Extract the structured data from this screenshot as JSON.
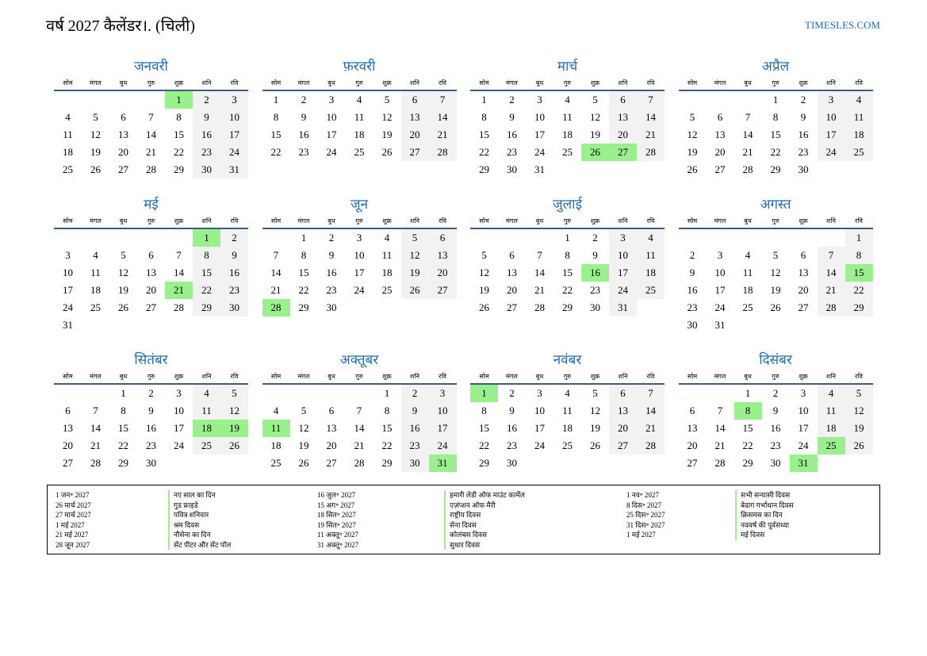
{
  "title": "वर्ष 2027 कैलेंडर।. (चिली)",
  "site": "TIMESLES.COM",
  "weekdays": [
    "सोम",
    "मंगल",
    "बुध",
    "गुरु",
    "शुक्र",
    "शनि",
    "रवि"
  ],
  "months": [
    {
      "name": "जनवरी",
      "offset": 4,
      "days": 31,
      "holidays": [
        1
      ]
    },
    {
      "name": "फ़रवरी",
      "offset": 0,
      "days": 28,
      "holidays": []
    },
    {
      "name": "मार्च",
      "offset": 0,
      "days": 31,
      "holidays": [
        26,
        27
      ]
    },
    {
      "name": "अप्रैल",
      "offset": 3,
      "days": 30,
      "holidays": []
    },
    {
      "name": "मई",
      "offset": 5,
      "days": 31,
      "holidays": [
        1,
        21
      ]
    },
    {
      "name": "जून",
      "offset": 1,
      "days": 30,
      "holidays": [
        28
      ]
    },
    {
      "name": "जुलाई",
      "offset": 3,
      "days": 31,
      "holidays": [
        16
      ]
    },
    {
      "name": "अगस्त",
      "offset": 6,
      "days": 31,
      "holidays": [
        15
      ]
    },
    {
      "name": "सितंबर",
      "offset": 2,
      "days": 30,
      "holidays": [
        18,
        19
      ]
    },
    {
      "name": "अक्तूबर",
      "offset": 4,
      "days": 31,
      "holidays": [
        11,
        31
      ]
    },
    {
      "name": "नवंबर",
      "offset": 0,
      "days": 30,
      "holidays": [
        1
      ]
    },
    {
      "name": "दिसंबर",
      "offset": 2,
      "days": 31,
      "holidays": [
        8,
        25,
        31
      ]
    }
  ],
  "holiday_columns": [
    [
      {
        "date": "1 जन॰ 2027",
        "name": "नए साल का दिन"
      },
      {
        "date": "26 मार्च 2027",
        "name": "गुड फ्राइडे"
      },
      {
        "date": "27 मार्च 2027",
        "name": "पवित्र शनिवार"
      },
      {
        "date": "1 मई 2027",
        "name": "श्रम दिवस"
      },
      {
        "date": "21 मई 2027",
        "name": "नौसेना का दिन"
      },
      {
        "date": "28 जून 2027",
        "name": "सेंट पीटर और सेंट पॉल"
      }
    ],
    [
      {
        "date": "16 जुल॰ 2027",
        "name": "हमारी लेडी ऑफ माउंट कार्मेल"
      },
      {
        "date": "15 अग॰ 2027",
        "name": "एज़ंप्शन ऑफ मैरी"
      },
      {
        "date": "18 सित॰ 2027",
        "name": "राष्ट्रीय दिवस"
      },
      {
        "date": "19 सित॰ 2027",
        "name": "सेना दिवस"
      },
      {
        "date": "11 अक्तू॰ 2027",
        "name": "कोलंबस दिवस"
      },
      {
        "date": "31 अक्तू॰ 2027",
        "name": "सुधार दिवस"
      }
    ],
    [
      {
        "date": "1 नव॰ 2027",
        "name": "सभी सन्यासी दिवस"
      },
      {
        "date": "8 दिस॰ 2027",
        "name": "बेदाग गर्भाधान दिवस"
      },
      {
        "date": "25 दिस॰ 2027",
        "name": "क्रिसमस का दिन"
      },
      {
        "date": "31 दिस॰ 2027",
        "name": "नववर्ष की पूर्वसंध्या"
      },
      {
        "date": "1 मई 2027",
        "name": "मई दिवस"
      }
    ]
  ]
}
